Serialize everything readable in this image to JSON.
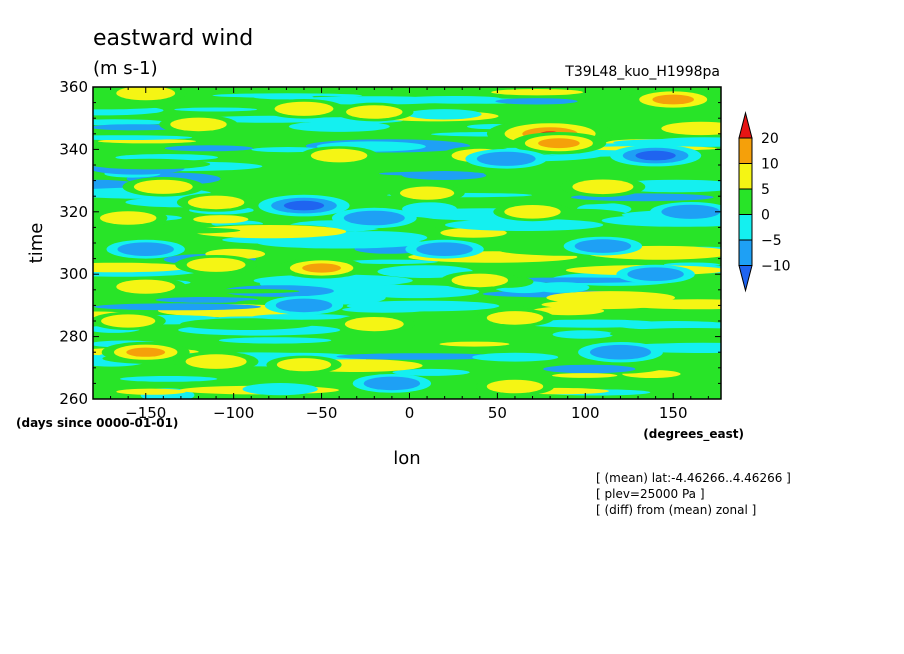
{
  "chart_data": {
    "type": "heatmap",
    "title": "eastward wind",
    "units": "(m s-1)",
    "run_label": "T39L48_kuo_H1998pa",
    "xlabel": "lon",
    "xunits": "(degrees_east)",
    "ylabel": "time",
    "yunits": "(days since 0000-01-01)",
    "xlim": [
      -180,
      177.1875
    ],
    "ylim": [
      260,
      360
    ],
    "xticks": [
      -150,
      -100,
      -50,
      0,
      50,
      100,
      150
    ],
    "yticks": [
      260,
      280,
      300,
      320,
      340,
      360
    ],
    "colorbar": {
      "levels": [
        -10,
        -5,
        0,
        5,
        10,
        20
      ],
      "level_labels": [
        "20",
        "10",
        "5",
        "0",
        "-5",
        "-10"
      ],
      "colors": [
        "#1f64f0",
        "#1ea0f5",
        "#14f0f0",
        "#28e428",
        "#f5f514",
        "#f5a00a",
        "#e61414"
      ],
      "extend": "both"
    },
    "notes": [
      "[ (mean) lat:-4.46266..4.46266 ]",
      "[ plev=25000 Pa ]",
      "[ (diff) from (mean) zonal ]"
    ],
    "features": [
      {
        "lon": 80,
        "time": 345,
        "value": 22
      },
      {
        "lon": 85,
        "time": 342,
        "value": 12
      },
      {
        "lon": 150,
        "time": 356,
        "value": 12
      },
      {
        "lon": -150,
        "time": 358,
        "value": 8
      },
      {
        "lon": -120,
        "time": 348,
        "value": 7
      },
      {
        "lon": -60,
        "time": 353,
        "value": 8
      },
      {
        "lon": -20,
        "time": 352,
        "value": 7
      },
      {
        "lon": 40,
        "time": 338,
        "value": 7
      },
      {
        "lon": -140,
        "time": 328,
        "value": 8
      },
      {
        "lon": -110,
        "time": 323,
        "value": 7
      },
      {
        "lon": -40,
        "time": 338,
        "value": 7
      },
      {
        "lon": 110,
        "time": 328,
        "value": 9
      },
      {
        "lon": 70,
        "time": 320,
        "value": 7
      },
      {
        "lon": -160,
        "time": 318,
        "value": 7
      },
      {
        "lon": 10,
        "time": 326,
        "value": 6
      },
      {
        "lon": -50,
        "time": 302,
        "value": 10
      },
      {
        "lon": -110,
        "time": 303,
        "value": 8
      },
      {
        "lon": -150,
        "time": 296,
        "value": 8
      },
      {
        "lon": 40,
        "time": 298,
        "value": 7
      },
      {
        "lon": 60,
        "time": 286,
        "value": 7
      },
      {
        "lon": -160,
        "time": 285,
        "value": 6
      },
      {
        "lon": -20,
        "time": 284,
        "value": 8
      },
      {
        "lon": -150,
        "time": 275,
        "value": 10
      },
      {
        "lon": -110,
        "time": 272,
        "value": 9
      },
      {
        "lon": -60,
        "time": 271,
        "value": 6
      },
      {
        "lon": 60,
        "time": 264,
        "value": 7
      },
      {
        "lon": -60,
        "time": 322,
        "value": -11
      },
      {
        "lon": -20,
        "time": 318,
        "value": -9
      },
      {
        "lon": 110,
        "time": 309,
        "value": -7
      },
      {
        "lon": 140,
        "time": 338,
        "value": -11
      },
      {
        "lon": 55,
        "time": 337,
        "value": -8
      },
      {
        "lon": 120,
        "time": 275,
        "value": -9
      },
      {
        "lon": -60,
        "time": 290,
        "value": -7
      },
      {
        "lon": -150,
        "time": 308,
        "value": -7
      },
      {
        "lon": 160,
        "time": 320,
        "value": -8
      },
      {
        "lon": 20,
        "time": 308,
        "value": -7
      },
      {
        "lon": -10,
        "time": 265,
        "value": -7
      },
      {
        "lon": 140,
        "time": 300,
        "value": -7
      }
    ]
  }
}
